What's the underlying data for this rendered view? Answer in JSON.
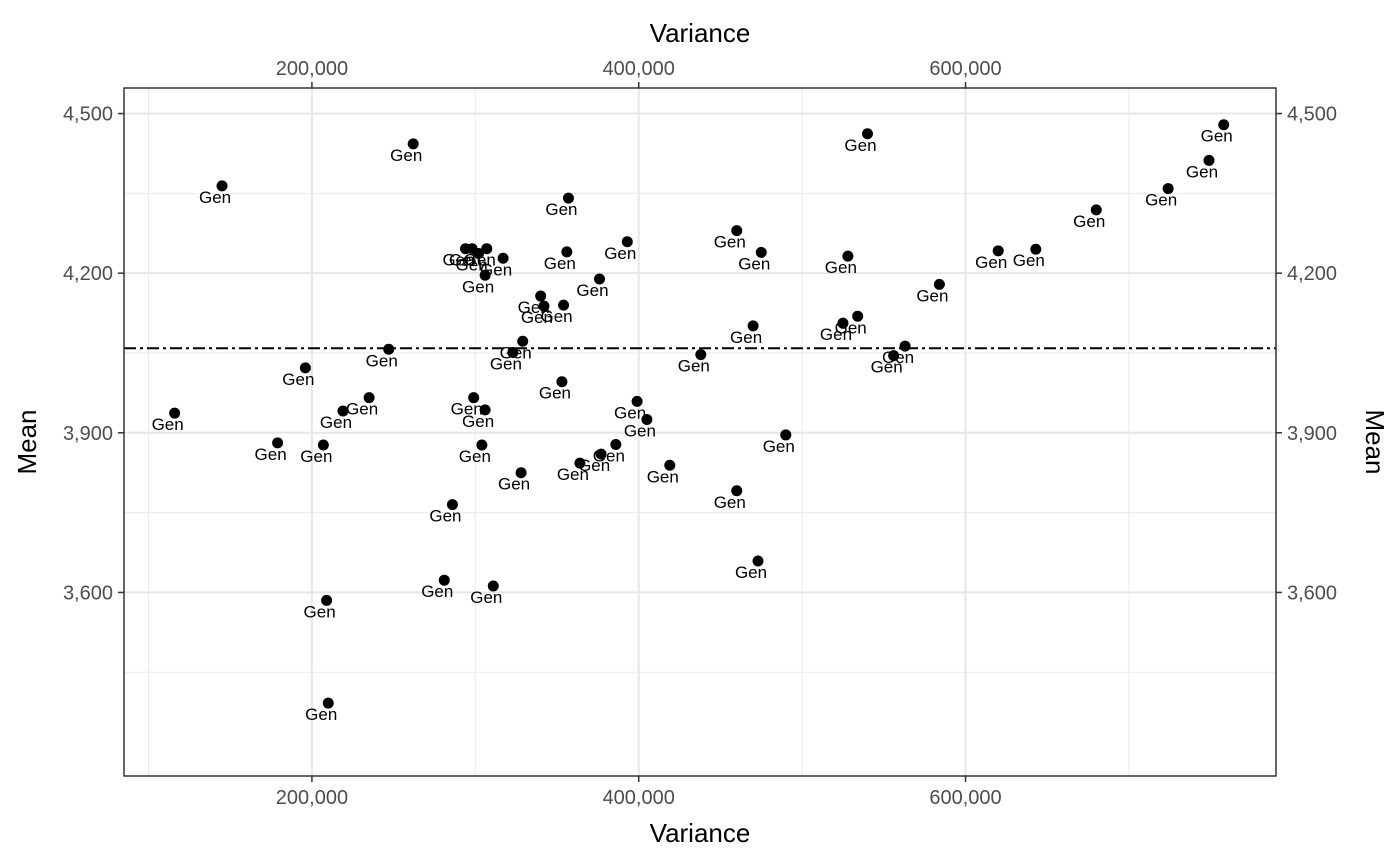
{
  "chart_data": {
    "type": "scatter",
    "title": "",
    "xlabel": "Variance",
    "ylabel": "Mean",
    "xlim": [
      85000,
      790000
    ],
    "ylim": [
      3255000,
      4548000
    ],
    "ylim_note": "",
    "x_ticks": [
      200000,
      400000,
      600000
    ],
    "x_tick_labels": [
      "200,000",
      "400,000",
      "600,000"
    ],
    "y_ticks": [
      3600,
      3900,
      4200,
      4500
    ],
    "y_tick_labels": [
      "3,600",
      "3,900",
      "4,200",
      "4,500"
    ],
    "grid": true,
    "mean_line": 4059,
    "point_label": "Gen",
    "points": [
      {
        "x": 145000,
        "y": 4364
      },
      {
        "x": 262000,
        "y": 4443
      },
      {
        "x": 357000,
        "y": 4341
      },
      {
        "x": 540000,
        "y": 4462
      },
      {
        "x": 758000,
        "y": 4479
      },
      {
        "x": 749000,
        "y": 4412
      },
      {
        "x": 724000,
        "y": 4359
      },
      {
        "x": 680000,
        "y": 4319
      },
      {
        "x": 643000,
        "y": 4245
      },
      {
        "x": 620000,
        "y": 4242
      },
      {
        "x": 584000,
        "y": 4179
      },
      {
        "x": 528000,
        "y": 4232
      },
      {
        "x": 475000,
        "y": 4239
      },
      {
        "x": 460000,
        "y": 4280
      },
      {
        "x": 393000,
        "y": 4259
      },
      {
        "x": 356000,
        "y": 4240
      },
      {
        "x": 376000,
        "y": 4189
      },
      {
        "x": 294000,
        "y": 4246
      },
      {
        "x": 298000,
        "y": 4246
      },
      {
        "x": 307000,
        "y": 4246
      },
      {
        "x": 302000,
        "y": 4237
      },
      {
        "x": 317000,
        "y": 4228
      },
      {
        "x": 306000,
        "y": 4196
      },
      {
        "x": 340000,
        "y": 4157
      },
      {
        "x": 342000,
        "y": 4138
      },
      {
        "x": 354000,
        "y": 4140
      },
      {
        "x": 470000,
        "y": 4101
      },
      {
        "x": 534000,
        "y": 4119
      },
      {
        "x": 525000,
        "y": 4106
      },
      {
        "x": 563000,
        "y": 4063
      },
      {
        "x": 556000,
        "y": 4045
      },
      {
        "x": 329000,
        "y": 4072
      },
      {
        "x": 323000,
        "y": 4051
      },
      {
        "x": 247000,
        "y": 4057
      },
      {
        "x": 438000,
        "y": 4047
      },
      {
        "x": 196000,
        "y": 4022
      },
      {
        "x": 353000,
        "y": 3996
      },
      {
        "x": 116000,
        "y": 3937
      },
      {
        "x": 235000,
        "y": 3966
      },
      {
        "x": 219000,
        "y": 3941
      },
      {
        "x": 299000,
        "y": 3966
      },
      {
        "x": 306000,
        "y": 3943
      },
      {
        "x": 399000,
        "y": 3959
      },
      {
        "x": 405000,
        "y": 3925
      },
      {
        "x": 490000,
        "y": 3896
      },
      {
        "x": 179000,
        "y": 3881
      },
      {
        "x": 207000,
        "y": 3877
      },
      {
        "x": 304000,
        "y": 3877
      },
      {
        "x": 386000,
        "y": 3878
      },
      {
        "x": 377000,
        "y": 3860
      },
      {
        "x": 364000,
        "y": 3843
      },
      {
        "x": 328000,
        "y": 3825
      },
      {
        "x": 419000,
        "y": 3839
      },
      {
        "x": 460000,
        "y": 3791
      },
      {
        "x": 286000,
        "y": 3765
      },
      {
        "x": 473000,
        "y": 3659
      },
      {
        "x": 281000,
        "y": 3623
      },
      {
        "x": 311000,
        "y": 3612
      },
      {
        "x": 209000,
        "y": 3585
      },
      {
        "x": 210000,
        "y": 3392
      }
    ]
  }
}
